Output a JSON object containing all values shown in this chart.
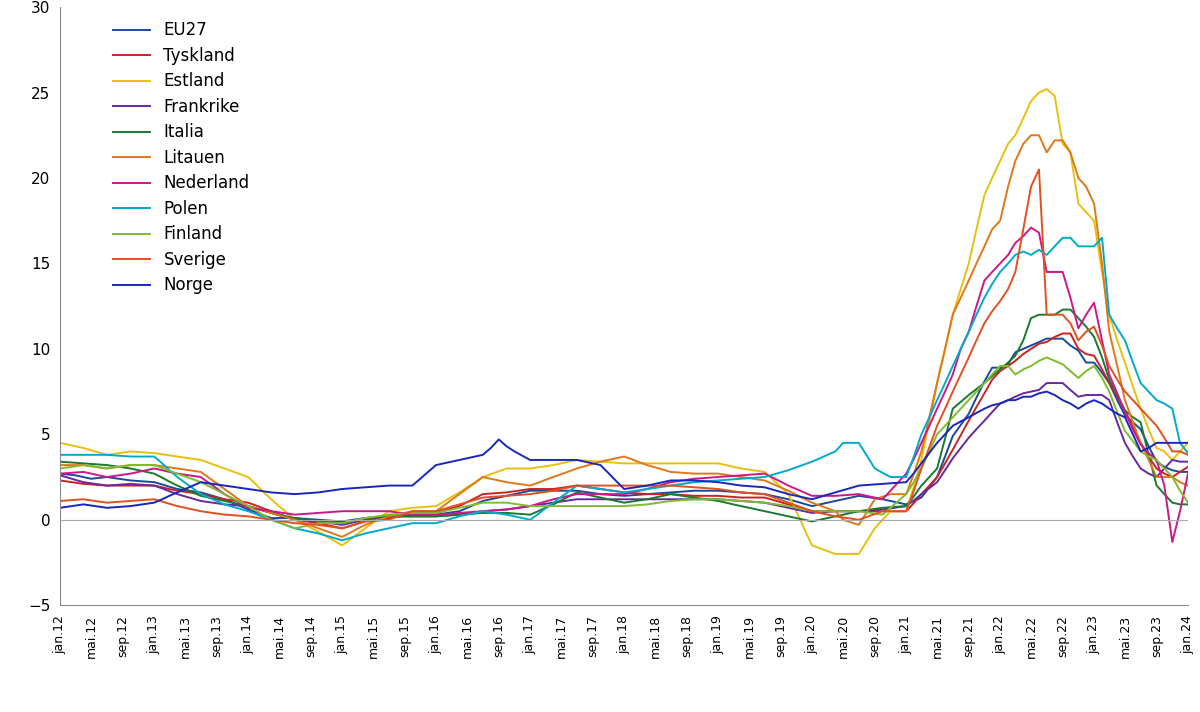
{
  "ylim": [
    -5,
    30
  ],
  "yticks": [
    -5,
    0,
    5,
    10,
    15,
    20,
    25,
    30
  ],
  "background_color": "#ffffff",
  "series": {
    "EU27": {
      "color": "#1a4a9e",
      "lw": 1.4
    },
    "Tyskland": {
      "color": "#cc2222",
      "lw": 1.4
    },
    "Estland": {
      "color": "#e8c010",
      "lw": 1.4
    },
    "Frankrike": {
      "color": "#6a28a0",
      "lw": 1.4
    },
    "Italia": {
      "color": "#1a7a30",
      "lw": 1.4
    },
    "Litauen": {
      "color": "#e07818",
      "lw": 1.4
    },
    "Nederland": {
      "color": "#cc1888",
      "lw": 1.4
    },
    "Polen": {
      "color": "#00aacc",
      "lw": 1.4
    },
    "Finland": {
      "color": "#80bb30",
      "lw": 1.4
    },
    "Sverige": {
      "color": "#e05020",
      "lw": 1.4
    },
    "Norge": {
      "color": "#1828bb",
      "lw": 1.4
    }
  },
  "legend_order": [
    "EU27",
    "Tyskland",
    "Estland",
    "Frankrike",
    "Italia",
    "Litauen",
    "Nederland",
    "Polen",
    "Finland",
    "Sverige",
    "Norge"
  ]
}
